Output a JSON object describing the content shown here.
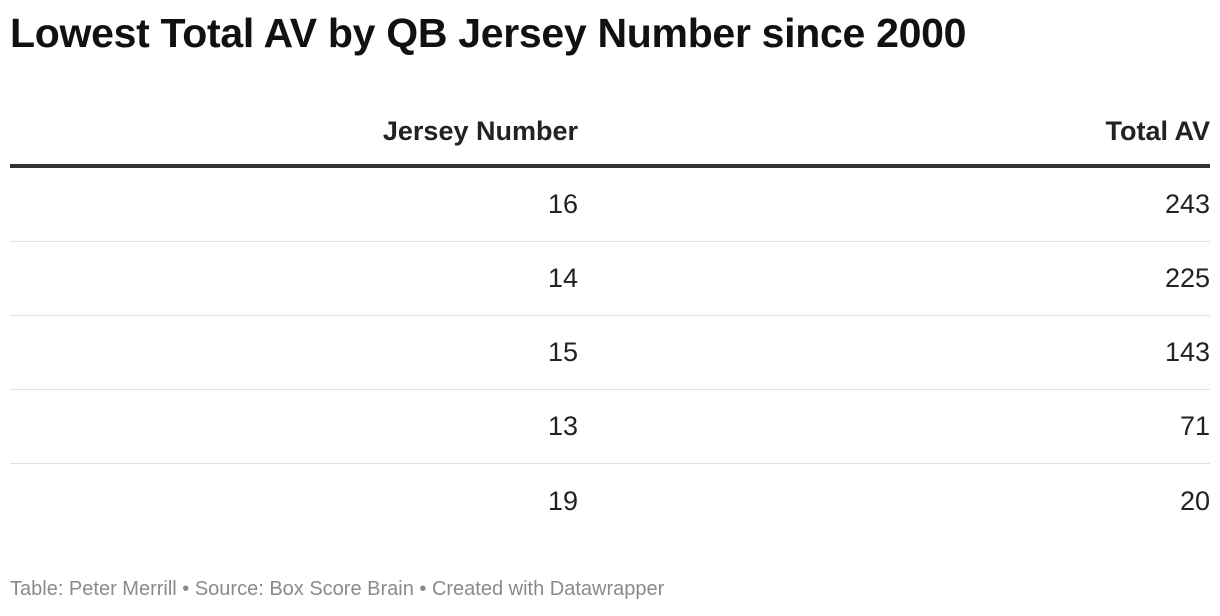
{
  "title": "Lowest Total AV by QB Jersey Number since 2000",
  "footer": "Table: Peter Merrill • Source: Box Score Brain • Created with Datawrapper",
  "chart_data": {
    "type": "table",
    "columns": [
      "Jersey Number",
      "Total AV"
    ],
    "rows": [
      [
        "16",
        "243"
      ],
      [
        "14",
        "225"
      ],
      [
        "15",
        "143"
      ],
      [
        "13",
        "71"
      ],
      [
        "19",
        "20"
      ]
    ]
  }
}
